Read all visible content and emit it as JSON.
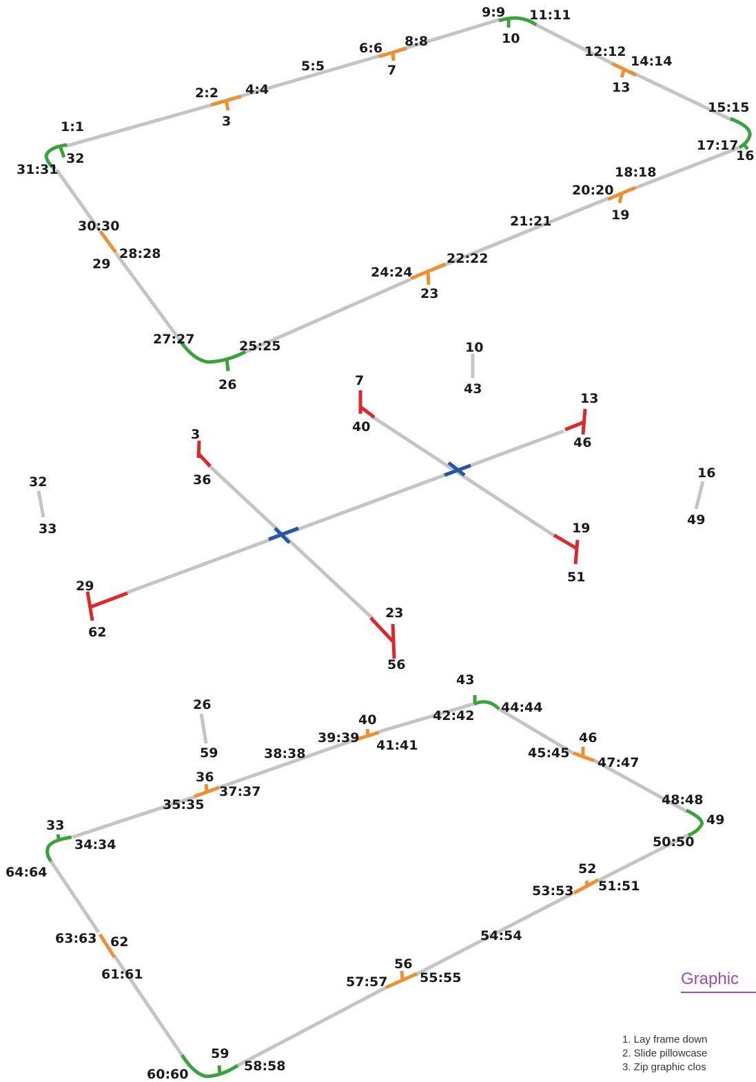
{
  "frame_top": {
    "labels": [
      "1:1",
      "2:2",
      "3",
      "4:4",
      "5:5",
      "6:6",
      "7",
      "8:8",
      "9:9",
      "10",
      "11:11",
      "12:12",
      "13",
      "14:14",
      "15:15",
      "16",
      "17:17",
      "18:18",
      "19",
      "20:20",
      "21:21",
      "22:22",
      "23",
      "24:24",
      "25:25",
      "26",
      "27:27",
      "28:28",
      "29",
      "30:30",
      "31:31",
      "32"
    ]
  },
  "connectors_middle": {
    "labels": [
      "10",
      "43",
      "7",
      "40",
      "13",
      "46",
      "3",
      "36",
      "32",
      "33",
      "16",
      "49",
      "19",
      "51",
      "29",
      "62",
      "23",
      "56",
      "26",
      "59"
    ]
  },
  "frame_bottom": {
    "labels": [
      "43",
      "44:44",
      "42:42",
      "40",
      "39:39",
      "41:41",
      "46",
      "45:45",
      "47:47",
      "38:38",
      "36",
      "37:37",
      "35:35",
      "33",
      "34:34",
      "48:48",
      "49",
      "50:50",
      "64:64",
      "52",
      "53:53",
      "51:51",
      "54:54",
      "63:63",
      "62",
      "61:61",
      "56",
      "57:57",
      "55:55",
      "59",
      "60:60",
      "58:58"
    ]
  },
  "instructions": {
    "title": "Graphic",
    "steps": [
      "1. Lay frame down",
      "2. Slide pillowcase",
      "3. Zip graphic clos"
    ]
  },
  "colors": {
    "tube": "#c4c4c4",
    "tee_connector": "#ef8f2f",
    "corner_connector": "#3aa23a",
    "end_connector": "#e0262a",
    "cross_connector": "#2456a8",
    "title_accent": "#a04ab0"
  }
}
